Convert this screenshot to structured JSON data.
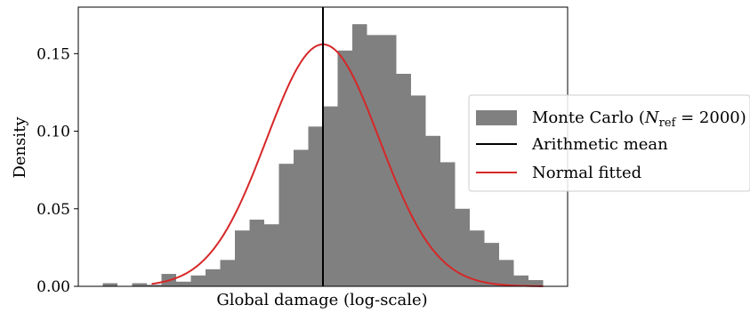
{
  "chart_data": {
    "type": "histogram",
    "xlabel": "Global damage (log-scale)",
    "ylabel": "Density",
    "ylim": [
      0,
      0.18
    ],
    "xlim": [
      0,
      1
    ],
    "y_ticks": [
      0.0,
      0.05,
      0.1,
      0.15
    ],
    "y_tick_labels": [
      "0.00",
      "0.05",
      "0.10",
      "0.15"
    ],
    "x_ticks_shown": false,
    "grid": false,
    "legend_position": "center-right, overlapping plot edge",
    "colors": {
      "histogram": "#808080",
      "mean_line": "#000000",
      "normal_fit": "#d62728"
    },
    "histogram": {
      "bin_edges": [
        0.05,
        0.08,
        0.11,
        0.14,
        0.17,
        0.2,
        0.23,
        0.26,
        0.29,
        0.32,
        0.35,
        0.38,
        0.41,
        0.44,
        0.47,
        0.5,
        0.53,
        0.56,
        0.59,
        0.62,
        0.65,
        0.68,
        0.71,
        0.74,
        0.77,
        0.8,
        0.83,
        0.86,
        0.89,
        0.92,
        0.95
      ],
      "densities": [
        0.002,
        0.0,
        0.002,
        0.001,
        0.008,
        0.003,
        0.007,
        0.011,
        0.017,
        0.036,
        0.043,
        0.04,
        0.079,
        0.088,
        0.103,
        0.116,
        0.152,
        0.169,
        0.162,
        0.162,
        0.137,
        0.123,
        0.097,
        0.08,
        0.05,
        0.036,
        0.028,
        0.017,
        0.007,
        0.004
      ]
    },
    "mean_x": 0.5,
    "normal_fit": {
      "mu": 0.5,
      "sigma": 0.1155,
      "peak_density": 0.156,
      "x_range": [
        0.15,
        0.95
      ]
    },
    "legend": {
      "entry_1_main": "Monte Carlo (",
      "entry_1_sym": "N",
      "entry_1_sub": "ref",
      "entry_1_rest": " = 2000)",
      "entry_2": "Arithmetic mean",
      "entry_3": "Normal fitted"
    }
  }
}
